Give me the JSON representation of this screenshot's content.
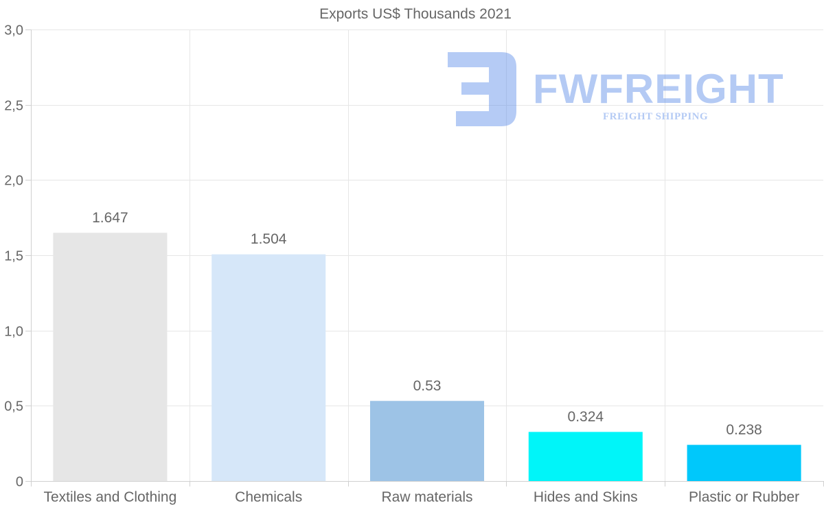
{
  "chart_data": {
    "type": "bar",
    "title": "Exports US$ Thousands 2021",
    "categories": [
      "Textiles and Clothing",
      "Chemicals",
      "Raw materials",
      "Hides and Skins",
      "Plastic or Rubber"
    ],
    "values": [
      1.647,
      1.504,
      0.53,
      0.324,
      0.238
    ],
    "value_labels": [
      "1.647",
      "1.504",
      "0.53",
      "0.324",
      "0.238"
    ],
    "bar_colors": [
      "#e6e6e6",
      "#d6e7f9",
      "#9dc3e6",
      "#00f5f9",
      "#00c8fb"
    ],
    "ylim": [
      0,
      3.0
    ],
    "y_ticks": [
      0,
      0.5,
      1.0,
      1.5,
      2.0,
      2.5,
      3.0
    ],
    "y_tick_labels": [
      "0",
      "0,5",
      "1,0",
      "1,5",
      "2,0",
      "2,5",
      "3,0"
    ],
    "xlabel": "",
    "ylabel": "",
    "grid": true,
    "legend": "none"
  },
  "watermark": {
    "brand": "FWFREIGHT",
    "tagline": "FREIGHT SHIPPING",
    "color": "#5b8ce8"
  }
}
